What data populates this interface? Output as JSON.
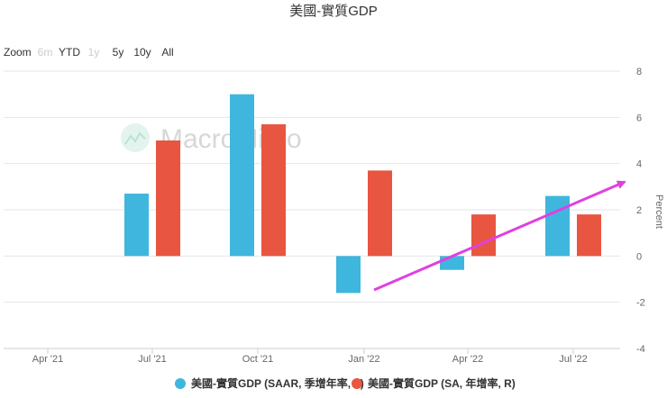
{
  "header": {
    "title": "美國-實質GDP"
  },
  "zoom": {
    "label": "Zoom",
    "buttons": [
      {
        "label": "6m",
        "enabled": false
      },
      {
        "label": "YTD",
        "enabled": true
      },
      {
        "label": "1y",
        "enabled": false
      },
      {
        "label": "5y",
        "enabled": true
      },
      {
        "label": "10y",
        "enabled": true
      },
      {
        "label": "All",
        "enabled": true
      }
    ]
  },
  "watermark": {
    "text": "MacroMicro"
  },
  "chart_data": {
    "type": "bar",
    "categories": [
      "Apr '21",
      "Jul '21",
      "Oct '21",
      "Jan '22",
      "Apr '22",
      "Jul '22"
    ],
    "series": [
      {
        "name": "美國-實質GDP (SAAR, 季增年率, L)",
        "color": "#3fb6dd",
        "values": [
          null,
          2.7,
          7.0,
          -1.6,
          -0.6,
          2.6
        ]
      },
      {
        "name": "美國-實質GDP (SA, 年增率, R)",
        "color": "#e85540",
        "values": [
          null,
          5.0,
          5.7,
          3.7,
          1.8,
          1.8
        ]
      }
    ],
    "y_axis_right": {
      "title": "Percent",
      "ticks": [
        "8",
        "6",
        "4",
        "2",
        "0",
        "-2",
        "-4"
      ],
      "range": [
        -4,
        8
      ]
    },
    "grid": true,
    "legend_position": "bottom",
    "annotation": {
      "type": "arrow",
      "color": "#e040e0"
    }
  }
}
